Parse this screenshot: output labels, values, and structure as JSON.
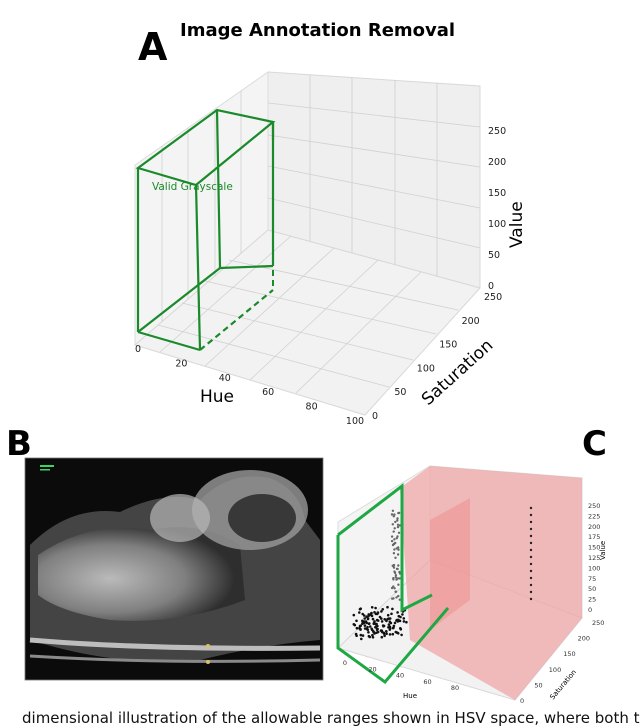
{
  "figure": {
    "title": "Image Annotation Removal",
    "caption_fragment": "dimensional illustration of the allowable ranges shown in HSV space, where both th"
  },
  "panels": {
    "a": {
      "letter": "A",
      "box_label": "Valid Grayscale",
      "box_color": "#1a8a2a"
    },
    "b": {
      "letter": "B",
      "scan_label": "ultrasound-image"
    },
    "c": {
      "letter": "C",
      "box_color": "#1ea844",
      "volume_color": "#f1a3a3"
    }
  },
  "chart_data": [
    {
      "type": "scatter3d",
      "panel": "A",
      "title": "Image Annotation Removal",
      "xlabel": "Hue",
      "ylabel": "Saturation",
      "zlabel": "Value",
      "xlim": [
        0,
        100
      ],
      "ylim": [
        0,
        250
      ],
      "zlim": [
        0,
        250
      ],
      "x_ticks": [
        "0",
        "20",
        "40",
        "60",
        "80",
        "100"
      ],
      "y_ticks": [
        "0",
        "50",
        "100",
        "150",
        "200",
        "250"
      ],
      "z_ticks": [
        "0",
        "50",
        "100",
        "150",
        "200",
        "250"
      ],
      "grid": true,
      "region": {
        "name": "Valid Grayscale",
        "hue": [
          0,
          30
        ],
        "saturation": [
          0,
          250
        ],
        "value": [
          0,
          250
        ]
      }
    },
    {
      "type": "scatter3d",
      "panel": "C",
      "xlabel": "Hue",
      "ylabel": "Saturation",
      "zlabel": "Value",
      "xlim": [
        0,
        80
      ],
      "ylim": [
        0,
        250
      ],
      "zlim": [
        0,
        250
      ],
      "x_ticks": [
        "0",
        "20",
        "40",
        "60",
        "80"
      ],
      "y_ticks": [
        "0",
        "50",
        "100",
        "150",
        "200",
        "250"
      ],
      "z_ticks": [
        "0",
        "25",
        "50",
        "75",
        "100",
        "125",
        "150",
        "175",
        "200",
        "225",
        "250"
      ],
      "grid": true
    }
  ]
}
